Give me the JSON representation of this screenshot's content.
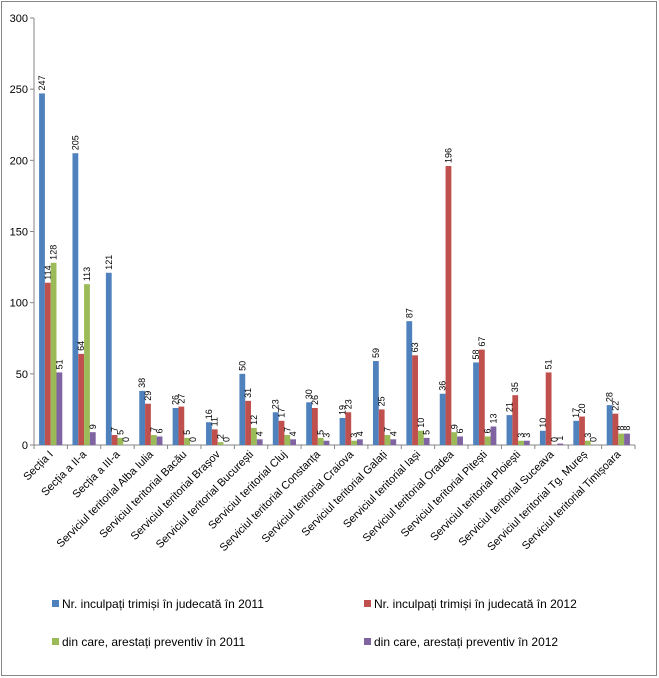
{
  "chart_data": {
    "type": "bar",
    "title": "",
    "xlabel": "",
    "ylabel": "",
    "ylim": [
      0,
      300
    ],
    "yticks": [
      0,
      50,
      100,
      150,
      200,
      250,
      300
    ],
    "grid": false,
    "legend_position": "bottom",
    "categories": [
      "Secția I",
      "Secția a II-a",
      "Secția a III-a",
      "Serviciul teritorial Alba Iulia",
      "Serviciul teritorial Bacău",
      "Serviciul teritorial Brașov",
      "Serviciul teritorial București",
      "Serviciul teritorial Cluj",
      "Serviciul teritorial  Constanța",
      "Serviciul teritorial Craiova",
      "Serviciul teritorial Galați",
      "Serviciul teritorial Iași",
      "Serviciul teritorial Oradea",
      "Serviciul teritorial Pitești",
      "Serviciul teritorial Ploiești",
      "Serviciul teritorial Suceava",
      "Serviciul teritorial Tg. Mureș",
      "Serviciul teritorial Timișoara"
    ],
    "series": [
      {
        "name": "Nr. inculpați trimiși în judecată în 2011",
        "color": "#4F81BD",
        "values": [
          247,
          205,
          121,
          38,
          26,
          16,
          50,
          23,
          30,
          19,
          59,
          87,
          36,
          58,
          21,
          10,
          17,
          28
        ]
      },
      {
        "name": "Nr. inculpați trimiși în judecată în 2012",
        "color": "#C0504D",
        "values": [
          114,
          64,
          7,
          29,
          27,
          11,
          31,
          17,
          26,
          23,
          25,
          63,
          196,
          67,
          35,
          51,
          20,
          22
        ]
      },
      {
        "name": "din care, arestați preventiv în 2011",
        "color": "#9BBB59",
        "values": [
          128,
          113,
          5,
          7,
          5,
          2,
          12,
          7,
          5,
          3,
          7,
          10,
          9,
          6,
          3,
          0,
          3,
          8
        ]
      },
      {
        "name": "din care, arestați preventiv în 2012",
        "color": "#8064A2",
        "values": [
          51,
          9,
          0,
          6,
          0,
          0,
          4,
          4,
          3,
          4,
          4,
          5,
          6,
          13,
          3,
          1,
          0,
          8
        ]
      }
    ]
  }
}
